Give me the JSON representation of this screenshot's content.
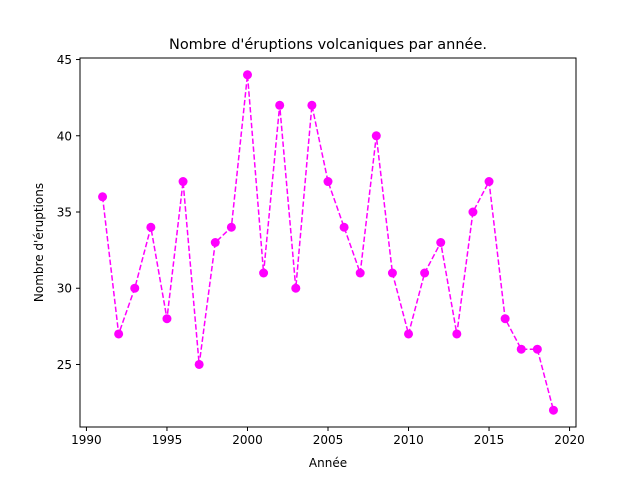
{
  "chart_data": {
    "type": "line",
    "title": "Nombre d'éruptions volcaniques par année.",
    "xlabel": "Année",
    "ylabel": "Nombre d'éruptions",
    "xlim": [
      1989.6,
      2020.4
    ],
    "ylim": [
      20.9,
      45.1
    ],
    "xticks": [
      1990,
      1995,
      2000,
      2005,
      2010,
      2015,
      2020
    ],
    "yticks": [
      25,
      30,
      35,
      40,
      45
    ],
    "grid": false,
    "line_style": "dashed",
    "marker": "circle",
    "color": "#ff00ff",
    "x": [
      1991,
      1992,
      1993,
      1994,
      1995,
      1996,
      1997,
      1998,
      1999,
      2000,
      2001,
      2002,
      2003,
      2004,
      2005,
      2006,
      2007,
      2008,
      2009,
      2010,
      2011,
      2012,
      2013,
      2014,
      2015,
      2016,
      2017,
      2018,
      2019
    ],
    "values": [
      36,
      27,
      30,
      34,
      28,
      37,
      25,
      33,
      34,
      44,
      31,
      42,
      30,
      42,
      37,
      34,
      31,
      40,
      31,
      27,
      31,
      33,
      27,
      35,
      37,
      28,
      26,
      26,
      22
    ]
  }
}
